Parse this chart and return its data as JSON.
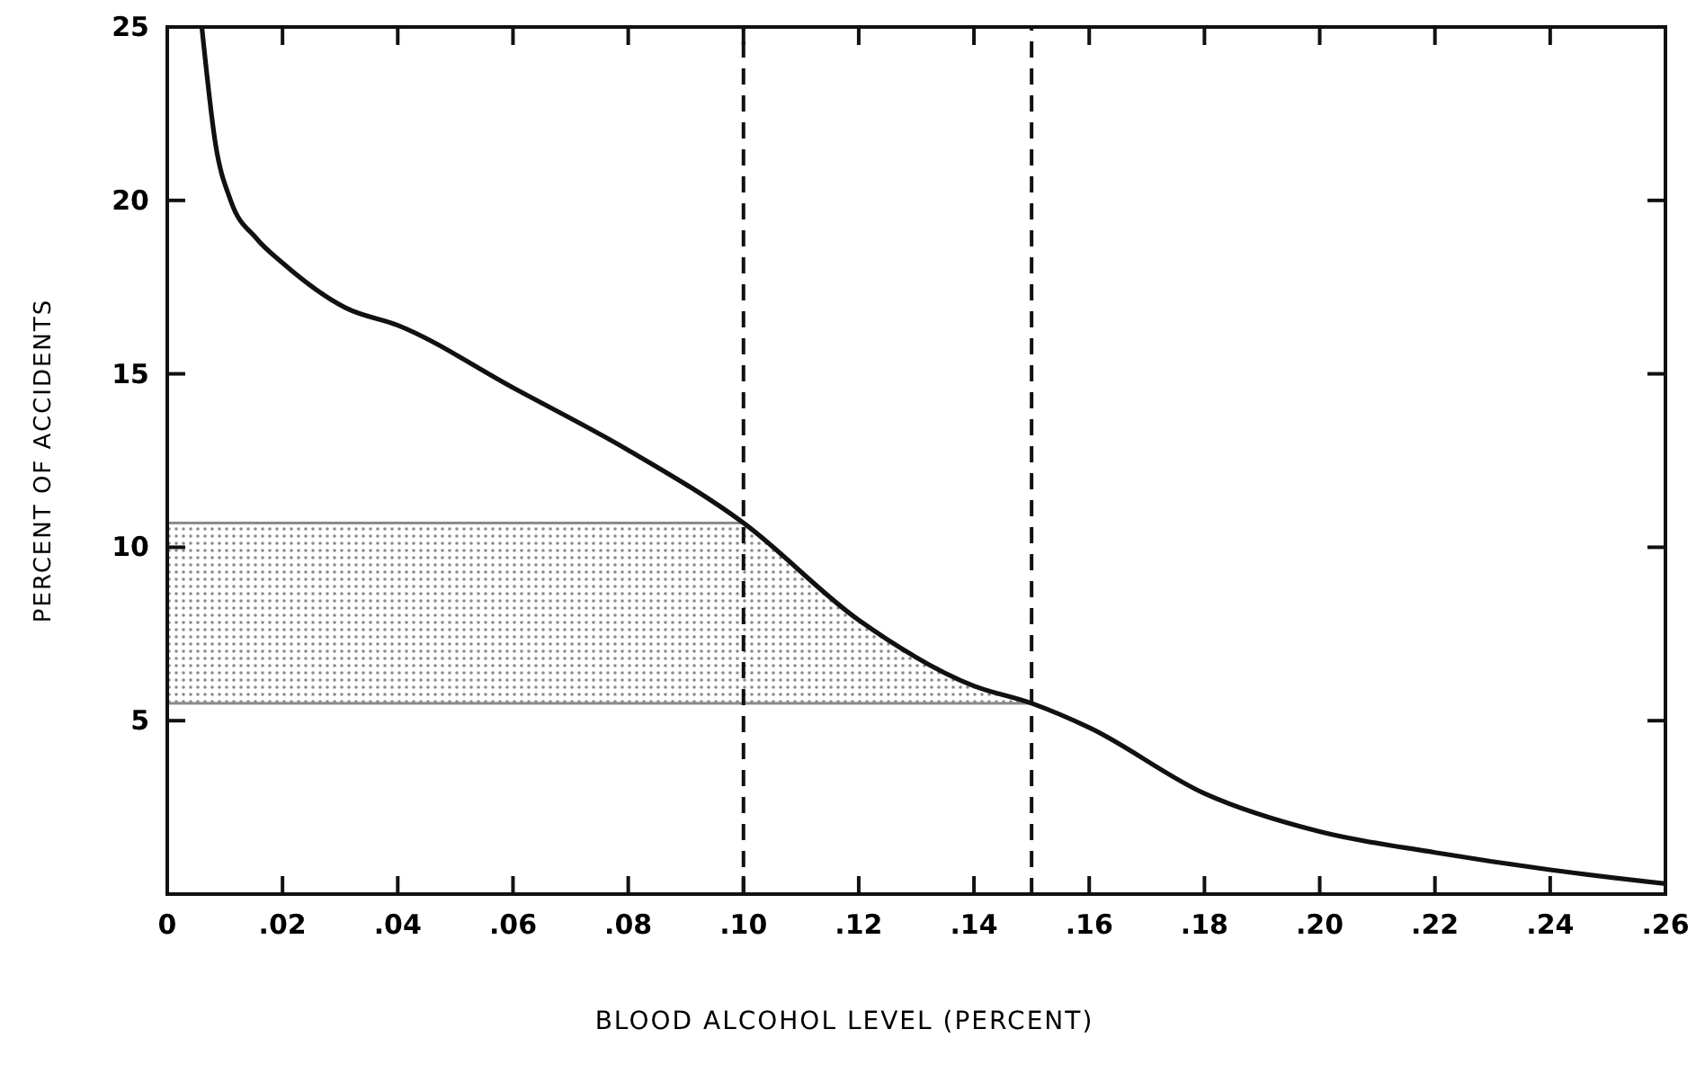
{
  "chart_data": {
    "type": "line",
    "xlabel": "BLOOD ALCOHOL LEVEL (PERCENT)",
    "ylabel": "PERCENT OF ACCIDENTS",
    "x": [
      0.006,
      0.0084,
      0.011,
      0.0155,
      0.02,
      0.031,
      0.04,
      0.06,
      0.08,
      0.1,
      0.12,
      0.14,
      0.15,
      0.16,
      0.18,
      0.2,
      0.22,
      0.24,
      0.26
    ],
    "series": [
      {
        "color": "#111111",
        "values": [
          25,
          21.6,
          20,
          18.9,
          18.2,
          16.9,
          16.4,
          14.6,
          12.8,
          10.7,
          7.9,
          6.0,
          5.5,
          4.8,
          2.9,
          1.8,
          1.2,
          0.7,
          0.3
        ]
      }
    ],
    "xlim": [
      0,
      0.26
    ],
    "ylim": [
      0,
      25
    ],
    "xticks": [
      0,
      {
        "value": 0.02,
        "label": ".02"
      },
      {
        "value": 0.04,
        "label": ".04"
      },
      {
        "value": 0.06,
        "label": ".06"
      },
      {
        "value": 0.08,
        "label": ".08"
      },
      {
        "value": 0.1,
        "label": ".10"
      },
      {
        "value": 0.12,
        "label": ".12"
      },
      {
        "value": 0.14,
        "label": ".14"
      },
      {
        "value": 0.16,
        "label": ".16"
      },
      {
        "value": 0.18,
        "label": ".18"
      },
      {
        "value": 0.2,
        "label": ".20"
      },
      {
        "value": 0.22,
        "label": ".22"
      },
      {
        "value": 0.24,
        "label": ".24"
      },
      {
        "value": 0.26,
        "label": ".26"
      }
    ],
    "yticks": [
      5,
      10,
      15,
      20,
      25
    ],
    "ref_lines": [
      {
        "axis": "x",
        "value": 0.1,
        "line_style": "dashed"
      },
      {
        "axis": "x",
        "value": 0.15,
        "line_style": "dashed"
      }
    ],
    "bands": [
      {
        "axis": "y",
        "from": 5.5,
        "to": 10.7,
        "color": "#8a8a8a"
      }
    ],
    "grid": false,
    "marker": "none",
    "line_style": "solid"
  }
}
